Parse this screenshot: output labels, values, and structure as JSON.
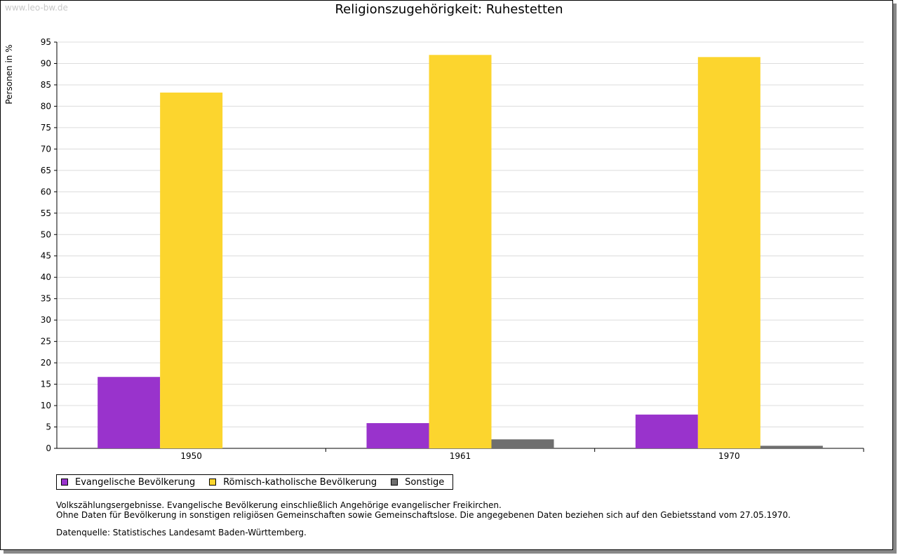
{
  "watermark": "www.leo-bw.de",
  "colors": {
    "evangelisch": "#9933cc",
    "katholisch": "#fcd52e",
    "sonstige": "#6e6e6e"
  },
  "notes": {
    "line1": "Volkszählungsergebnisse. Evangelische Bevölkerung einschließlich Angehörige evangelischer Freikirchen.",
    "line2": "Ohne Daten für Bevölkerung in sonstigen religiösen Gemeinschaften sowie Gemeinschaftslose. Die angegebenen Daten beziehen sich auf den Gebietsstand vom 27.05.1970.",
    "source": "Datenquelle: Statistisches Landesamt Baden-Württemberg."
  },
  "chart_data": {
    "type": "bar",
    "title": "Religionszugehörigkeit: Ruhestetten",
    "xlabel": "",
    "ylabel": "Personen in %",
    "categories": [
      "1950",
      "1961",
      "1970"
    ],
    "ylim": [
      0,
      95
    ],
    "yticks": [
      0,
      5,
      10,
      15,
      20,
      25,
      30,
      35,
      40,
      45,
      50,
      55,
      60,
      65,
      70,
      75,
      80,
      85,
      90,
      95
    ],
    "grid": true,
    "legend_position": "bottom-left",
    "series": [
      {
        "name": "Evangelische Bevölkerung",
        "color": "#9933cc",
        "values": [
          16.7,
          5.9,
          7.9
        ]
      },
      {
        "name": "Römisch-katholische Bevölkerung",
        "color": "#fcd52e",
        "values": [
          83.2,
          92.0,
          91.5
        ]
      },
      {
        "name": "Sonstige",
        "color": "#6e6e6e",
        "values": [
          null,
          2.1,
          0.6
        ]
      }
    ]
  }
}
